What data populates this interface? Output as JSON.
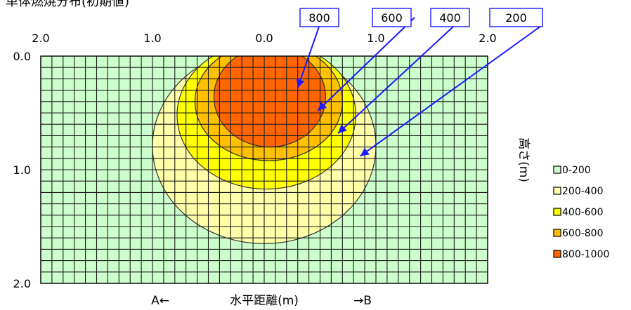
{
  "chart_data": {
    "type": "heatmap",
    "title": "単体燃焼分布(初期値)",
    "x_ticks": [
      "2.0",
      "1.0",
      "0.0",
      "1.0",
      "2.0"
    ],
    "y_ticks": [
      "0.0",
      "1.0",
      "2.0"
    ],
    "xlabel": "水平距離(m)",
    "xlabel_left": "A←",
    "xlabel_right": "→B",
    "ylabel": "高さ(m)",
    "xlim": [
      -2.0,
      2.0
    ],
    "ylim": [
      0.0,
      2.0
    ],
    "grid": true,
    "legend_position": "right",
    "levels": [
      {
        "name": "0-200",
        "color": "#ccffcc"
      },
      {
        "name": "200-400",
        "color": "#ffffaa"
      },
      {
        "name": "400-600",
        "color": "#ffff00"
      },
      {
        "name": "600-800",
        "color": "#ffc000"
      },
      {
        "name": "800-1000",
        "color": "#ff6600"
      }
    ],
    "contours": [
      {
        "level": 200,
        "center_x": 0.0,
        "center_y": 0.79,
        "radius_x": 1.0,
        "radius_y": 0.86,
        "color": "#ffffaa"
      },
      {
        "level": 400,
        "center_x": 0.02,
        "center_y": 0.52,
        "radius_x": 0.8,
        "radius_y": 0.65,
        "color": "#ffff00"
      },
      {
        "level": 600,
        "center_x": 0.04,
        "center_y": 0.4,
        "radius_x": 0.66,
        "radius_y": 0.52,
        "color": "#ffc000"
      },
      {
        "level": 800,
        "center_x": 0.05,
        "center_y": 0.36,
        "radius_x": 0.5,
        "radius_y": 0.44,
        "color": "#ff6600"
      }
    ],
    "annotations": [
      {
        "text": "800",
        "target_x": 0.3,
        "target_y": 0.28
      },
      {
        "text": "600",
        "target_x": 0.48,
        "target_y": 0.48
      },
      {
        "text": "400",
        "target_x": 0.66,
        "target_y": 0.68
      },
      {
        "text": "200",
        "target_x": 0.86,
        "target_y": 0.88
      }
    ]
  }
}
